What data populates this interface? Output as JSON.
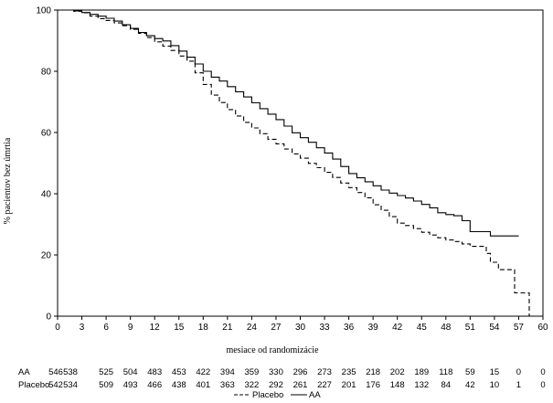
{
  "chart_data": {
    "type": "line",
    "xlabel": "mesiace od randomizácie",
    "ylabel": "% pacientov bez úmrtia",
    "xlim": [
      0,
      60
    ],
    "ylim": [
      0,
      100
    ],
    "x_ticks": [
      0,
      3,
      6,
      9,
      12,
      15,
      18,
      21,
      24,
      27,
      30,
      33,
      36,
      39,
      42,
      45,
      48,
      51,
      54,
      57,
      60
    ],
    "y_ticks": [
      0,
      20,
      40,
      60,
      80,
      100
    ],
    "series": [
      {
        "name": "AA",
        "style": "solid",
        "points": [
          [
            0,
            100
          ],
          [
            2,
            99.7
          ],
          [
            3,
            99.2
          ],
          [
            4,
            98.6
          ],
          [
            5,
            98
          ],
          [
            6,
            97.3
          ],
          [
            7,
            96.4
          ],
          [
            8,
            95.2
          ],
          [
            9,
            94
          ],
          [
            10,
            92.7
          ],
          [
            11,
            91.6
          ],
          [
            12,
            90.7
          ],
          [
            13,
            89.9
          ],
          [
            14,
            88.4
          ],
          [
            15,
            86.6
          ],
          [
            16,
            84.6
          ],
          [
            17,
            82.4
          ],
          [
            18,
            80
          ],
          [
            19,
            78.1
          ],
          [
            20,
            76.8
          ],
          [
            21,
            75
          ],
          [
            22,
            73.3
          ],
          [
            23,
            71.6
          ],
          [
            24,
            69.7
          ],
          [
            25,
            67.8
          ],
          [
            26,
            66
          ],
          [
            27,
            64.2
          ],
          [
            28,
            62.1
          ],
          [
            29,
            59.9
          ],
          [
            30,
            58.3
          ],
          [
            31,
            56.8
          ],
          [
            32,
            55
          ],
          [
            33,
            53.3
          ],
          [
            34,
            51.3
          ],
          [
            35,
            48.9
          ],
          [
            36,
            46.6
          ],
          [
            37,
            45.2
          ],
          [
            38,
            43.9
          ],
          [
            39,
            42.6
          ],
          [
            40,
            41.2
          ],
          [
            41,
            40.2
          ],
          [
            42,
            39.4
          ],
          [
            43,
            38.6
          ],
          [
            44,
            37.6
          ],
          [
            45,
            36.5
          ],
          [
            46,
            35.4
          ],
          [
            47,
            33.8
          ],
          [
            48,
            33.2
          ],
          [
            49,
            32.8
          ],
          [
            50,
            31.2
          ],
          [
            51,
            27.6
          ],
          [
            52,
            27.6
          ],
          [
            53,
            27.6
          ],
          [
            53.5,
            26.2
          ],
          [
            54,
            26.2
          ],
          [
            57,
            26.2
          ]
        ]
      },
      {
        "name": "Placebo",
        "style": "dashed",
        "points": [
          [
            0,
            100
          ],
          [
            2,
            99.6
          ],
          [
            3,
            99.1
          ],
          [
            4,
            98
          ],
          [
            5,
            97.2
          ],
          [
            6,
            96.6
          ],
          [
            7,
            95.8
          ],
          [
            8,
            94.9
          ],
          [
            9,
            93.7
          ],
          [
            10,
            92.4
          ],
          [
            11,
            91
          ],
          [
            12,
            89.6
          ],
          [
            13,
            88.2
          ],
          [
            14,
            86.8
          ],
          [
            15,
            85
          ],
          [
            16,
            83.3
          ],
          [
            17,
            79.5
          ],
          [
            18,
            75.7
          ],
          [
            19,
            72.2
          ],
          [
            20,
            69.8
          ],
          [
            21,
            67.5
          ],
          [
            22,
            65.4
          ],
          [
            23,
            63.3
          ],
          [
            24,
            61.5
          ],
          [
            25,
            59.6
          ],
          [
            26,
            57.8
          ],
          [
            27,
            56.3
          ],
          [
            28,
            54.6
          ],
          [
            29,
            53
          ],
          [
            30,
            51.6
          ],
          [
            31,
            49.9
          ],
          [
            32,
            48.5
          ],
          [
            33,
            47
          ],
          [
            34,
            45.3
          ],
          [
            35,
            43.5
          ],
          [
            36,
            42
          ],
          [
            37,
            40.4
          ],
          [
            38,
            38.7
          ],
          [
            39,
            36.4
          ],
          [
            40,
            34.6
          ],
          [
            41,
            32.5
          ],
          [
            42,
            30.4
          ],
          [
            43,
            29.6
          ],
          [
            44,
            28.6
          ],
          [
            45,
            27.4
          ],
          [
            46,
            26.5
          ],
          [
            47,
            25.6
          ],
          [
            48,
            24.9
          ],
          [
            49,
            24.4
          ],
          [
            50,
            23.6
          ],
          [
            51,
            22.8
          ],
          [
            52,
            22.8
          ],
          [
            53,
            20.5
          ],
          [
            53.5,
            17.6
          ],
          [
            54,
            17.6
          ],
          [
            54.5,
            15.2
          ],
          [
            56,
            15.2
          ],
          [
            56.5,
            7.6
          ],
          [
            58,
            7.6
          ],
          [
            58.3,
            0
          ]
        ]
      }
    ],
    "risk_table": {
      "rows": [
        {
          "label": "AA",
          "values": [
            "546",
            "538",
            "525",
            "504",
            "483",
            "453",
            "422",
            "394",
            "359",
            "330",
            "296",
            "273",
            "235",
            "218",
            "202",
            "189",
            "118",
            "59",
            "15",
            "0",
            "0"
          ]
        },
        {
          "label": "Placebo",
          "values": [
            "542",
            "534",
            "509",
            "493",
            "466",
            "438",
            "401",
            "363",
            "322",
            "292",
            "261",
            "227",
            "201",
            "176",
            "148",
            "132",
            "84",
            "42",
            "10",
            "1",
            "0"
          ]
        }
      ]
    },
    "legend": {
      "position": "bottom",
      "items": [
        {
          "name": "Placebo",
          "style": "dashed"
        },
        {
          "name": "AA",
          "style": "solid"
        }
      ]
    }
  }
}
